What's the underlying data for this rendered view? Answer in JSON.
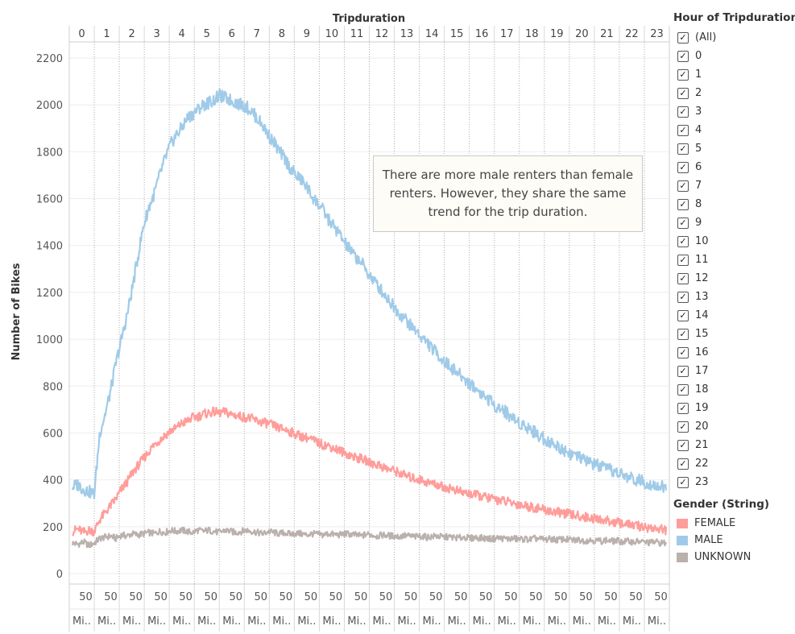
{
  "legend_filter": {
    "title": "Hour of Tripduration",
    "items": [
      {
        "label": "(All)",
        "checked": true
      },
      {
        "label": "0",
        "checked": true
      },
      {
        "label": "1",
        "checked": true
      },
      {
        "label": "2",
        "checked": true
      },
      {
        "label": "3",
        "checked": true
      },
      {
        "label": "4",
        "checked": true
      },
      {
        "label": "5",
        "checked": true
      },
      {
        "label": "6",
        "checked": true
      },
      {
        "label": "7",
        "checked": true
      },
      {
        "label": "8",
        "checked": true
      },
      {
        "label": "9",
        "checked": true
      },
      {
        "label": "10",
        "checked": true
      },
      {
        "label": "11",
        "checked": true
      },
      {
        "label": "12",
        "checked": true
      },
      {
        "label": "13",
        "checked": true
      },
      {
        "label": "14",
        "checked": true
      },
      {
        "label": "15",
        "checked": true
      },
      {
        "label": "16",
        "checked": true
      },
      {
        "label": "17",
        "checked": true
      },
      {
        "label": "18",
        "checked": true
      },
      {
        "label": "19",
        "checked": true
      },
      {
        "label": "20",
        "checked": true
      },
      {
        "label": "21",
        "checked": true
      },
      {
        "label": "22",
        "checked": true
      },
      {
        "label": "23",
        "checked": true
      }
    ]
  },
  "legend_gender": {
    "title": "Gender (String)",
    "items": [
      {
        "label": "FEMALE",
        "color": "#ff9d9a"
      },
      {
        "label": "MALE",
        "color": "#a0cbe8"
      },
      {
        "label": "UNKNOWN",
        "color": "#bab0ac"
      }
    ]
  },
  "annotation": "There are more male renters than female renters. However, they share the same trend for the trip duration.",
  "chart_data": {
    "type": "line",
    "title": "",
    "xlabel_top": "Tripduration",
    "ylabel": "Number of Bikes",
    "panels": [
      "0",
      "1",
      "2",
      "3",
      "4",
      "5",
      "6",
      "7",
      "8",
      "9",
      "10",
      "11",
      "12",
      "13",
      "14",
      "15",
      "16",
      "17",
      "18",
      "19",
      "20",
      "21",
      "22",
      "23"
    ],
    "bottom_tick_label": "50",
    "bottom_row_label": "Mi..",
    "ylim": [
      0,
      2250
    ],
    "yticks": [
      0,
      200,
      400,
      600,
      800,
      1000,
      1200,
      1400,
      1600,
      1800,
      2000,
      2200
    ],
    "series": [
      {
        "name": "MALE",
        "color": "#a0cbe8",
        "values": [
          370,
          380,
          360,
          350,
          340,
          600,
          680,
          780,
          900,
          1000,
          1100,
          1220,
          1350,
          1480,
          1560,
          1620,
          1700,
          1770,
          1830,
          1870,
          1900,
          1940,
          1960,
          1980,
          2000,
          2010,
          2020,
          2040,
          2030,
          2020,
          2010,
          2000,
          1990,
          1970,
          1940,
          1910,
          1870,
          1840,
          1800,
          1770,
          1730,
          1700,
          1680,
          1650,
          1610,
          1580,
          1550,
          1510,
          1480,
          1450,
          1410,
          1380,
          1350,
          1330,
          1290,
          1260,
          1230,
          1200,
          1170,
          1140,
          1110,
          1090,
          1060,
          1040,
          1010,
          990,
          960,
          940,
          910,
          890,
          870,
          850,
          830,
          810,
          790,
          770,
          750,
          730,
          710,
          700,
          680,
          660,
          645,
          630,
          620,
          600,
          585,
          570,
          555,
          545,
          530,
          520,
          505,
          495,
          485,
          475,
          465,
          455,
          445,
          440,
          430,
          420,
          412,
          405,
          398,
          390,
          385,
          378,
          372,
          365
        ]
      },
      {
        "name": "FEMALE",
        "color": "#ff9d9a",
        "values": [
          180,
          190,
          175,
          185,
          180,
          230,
          260,
          290,
          320,
          360,
          390,
          430,
          460,
          490,
          520,
          550,
          570,
          590,
          610,
          620,
          640,
          650,
          665,
          670,
          680,
          685,
          690,
          685,
          690,
          680,
          675,
          670,
          665,
          660,
          650,
          645,
          640,
          630,
          620,
          615,
          605,
          595,
          585,
          580,
          570,
          560,
          550,
          545,
          535,
          525,
          515,
          505,
          495,
          490,
          480,
          470,
          465,
          455,
          445,
          440,
          430,
          420,
          410,
          405,
          400,
          390,
          385,
          380,
          370,
          365,
          360,
          350,
          345,
          340,
          335,
          330,
          325,
          320,
          315,
          310,
          305,
          300,
          295,
          290,
          285,
          280,
          275,
          270,
          265,
          262,
          258,
          254,
          250,
          246,
          242,
          238,
          234,
          230,
          226,
          222,
          218,
          214,
          210,
          206,
          202,
          198,
          195,
          192,
          189,
          186
        ]
      },
      {
        "name": "UNKNOWN",
        "color": "#bab0ac",
        "values": [
          130,
          125,
          135,
          120,
          130,
          150,
          155,
          160,
          150,
          165,
          160,
          170,
          165,
          170,
          175,
          170,
          180,
          175,
          185,
          180,
          185,
          180,
          175,
          185,
          180,
          185,
          180,
          175,
          185,
          180,
          175,
          180,
          185,
          180,
          175,
          170,
          180,
          175,
          170,
          175,
          168,
          172,
          170,
          165,
          170,
          168,
          165,
          170,
          167,
          165,
          170,
          168,
          165,
          160,
          168,
          165,
          160,
          165,
          162,
          160,
          158,
          162,
          160,
          157,
          160,
          155,
          158,
          160,
          155,
          157,
          154,
          152,
          156,
          150,
          154,
          152,
          150,
          148,
          152,
          150,
          148,
          150,
          146,
          148,
          145,
          150,
          147,
          145,
          148,
          144,
          146,
          145,
          142,
          144,
          140,
          143,
          141,
          139,
          142,
          138,
          140,
          136,
          138,
          135,
          137,
          134,
          132,
          135,
          131,
          130
        ]
      }
    ]
  }
}
